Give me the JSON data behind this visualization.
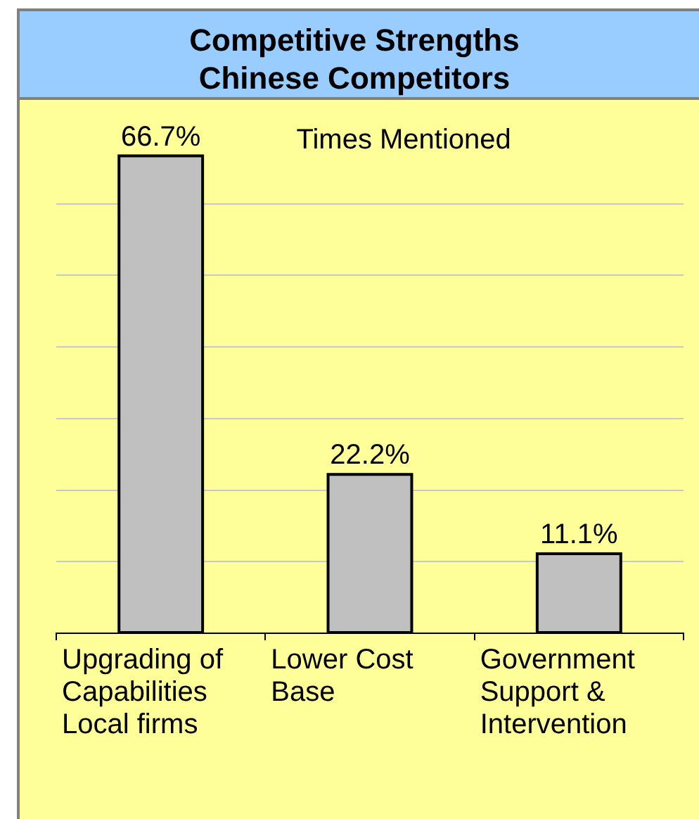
{
  "chart_data": {
    "type": "bar",
    "title": "Competitive Strengths",
    "subtitle": "Chinese Competitors",
    "categories": [
      "Upgrading of Capabilities Local firms",
      "Lower Cost Base",
      "Government Support & Intervention"
    ],
    "values": [
      66.7,
      22.2,
      11.1
    ],
    "value_labels": [
      "66.7%",
      "22.2%",
      "11.1%"
    ],
    "color": "#c0c0c0",
    "grid": "y",
    "tick_labels": "x",
    "annotations": [
      "Times Mentioned"
    ]
  }
}
